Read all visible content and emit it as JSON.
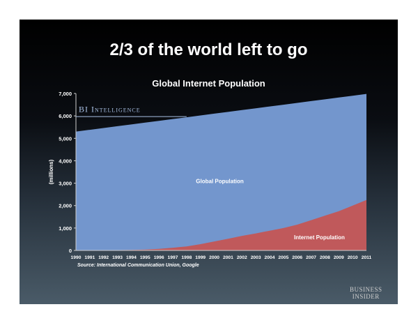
{
  "slide": {
    "title": "2/3 of the world left to go",
    "source_note": "Source: International Communication Union, Google",
    "logo": {
      "line1": "BUSINESS",
      "line2": "INSIDER"
    }
  },
  "colors": {
    "global": "#7396cd",
    "internet": "#c0595b",
    "brand": "#a9c0e4",
    "text": "#ffffff"
  },
  "chart_data": {
    "type": "area",
    "title": "Global Internet Population",
    "brand_label": "BI Intelligence",
    "ylabel": "(millions)",
    "xlabel": "",
    "ylim": [
      0,
      7000
    ],
    "yticks": [
      0,
      1000,
      2000,
      3000,
      4000,
      5000,
      6000,
      7000
    ],
    "ytick_labels": [
      "0",
      "1,000",
      "2,000",
      "3,000",
      "4,000",
      "5,000",
      "6,000",
      "7,000"
    ],
    "x": [
      "1990",
      "1991",
      "1992",
      "1993",
      "1994",
      "1995",
      "1996",
      "1997",
      "1998",
      "1999",
      "2000",
      "2001",
      "2002",
      "2003",
      "2004",
      "2005",
      "2006",
      "2007",
      "2008",
      "2009",
      "2010",
      "2011"
    ],
    "grid": false,
    "legend": "none",
    "series": [
      {
        "name": "Global Population",
        "values": [
          5300,
          5380,
          5460,
          5540,
          5620,
          5700,
          5780,
          5860,
          5940,
          6020,
          6100,
          6180,
          6260,
          6340,
          6420,
          6500,
          6580,
          6660,
          6740,
          6820,
          6900,
          6980
        ]
      },
      {
        "name": "Internet Population",
        "values": [
          3,
          5,
          10,
          15,
          25,
          40,
          70,
          120,
          180,
          280,
          400,
          520,
          650,
          760,
          880,
          1000,
          1150,
          1350,
          1550,
          1750,
          2000,
          2250
        ]
      }
    ]
  }
}
